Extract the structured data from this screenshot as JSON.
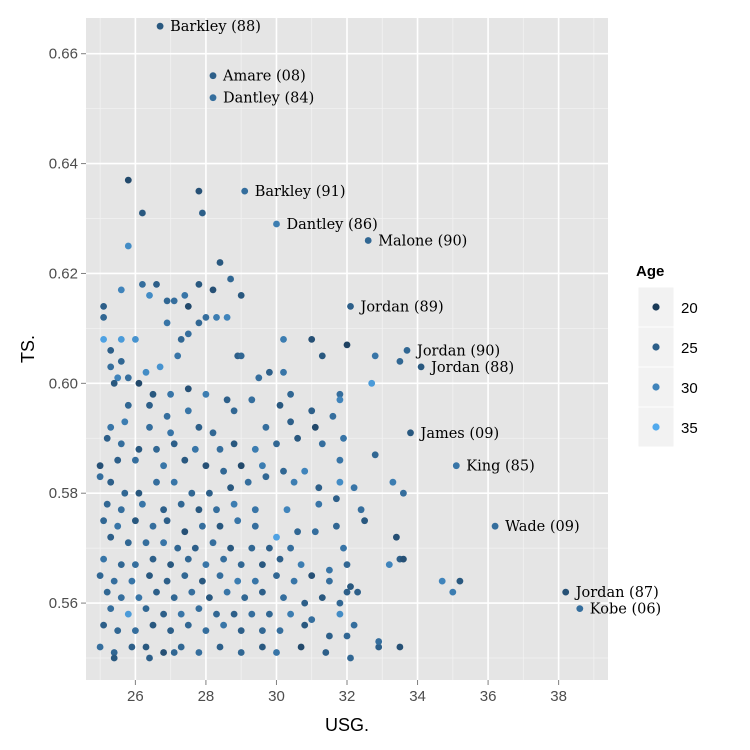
{
  "chart_data": {
    "type": "scatter",
    "title": "",
    "xlabel": "USG.",
    "ylabel": "TS.",
    "xlim": [
      24.6,
      39.4
    ],
    "ylim": [
      0.546,
      0.6665
    ],
    "x_ticks": [
      26,
      28,
      30,
      32,
      34,
      36,
      38
    ],
    "y_ticks": [
      0.56,
      0.58,
      0.6,
      0.62,
      0.64,
      0.66
    ],
    "grid": true,
    "color_scale": {
      "name": "Age",
      "low_value": 18,
      "low_color": "#132B43",
      "high_value": 36,
      "high_color": "#56B1F7"
    },
    "legend": {
      "title": "Age",
      "position": "right",
      "entries": [
        20,
        25,
        30,
        35
      ]
    },
    "annotations": [
      {
        "label": "Barkley (88)",
        "x": 26.7,
        "y": 0.665,
        "age": 24
      },
      {
        "label": "Amare (08)",
        "x": 28.2,
        "y": 0.656,
        "age": 25
      },
      {
        "label": "Dantley (84)",
        "x": 28.2,
        "y": 0.652,
        "age": 27
      },
      {
        "label": "Barkley (91)",
        "x": 29.1,
        "y": 0.635,
        "age": 27
      },
      {
        "label": "Dantley (86)",
        "x": 30.0,
        "y": 0.629,
        "age": 29
      },
      {
        "label": "Malone (90)",
        "x": 32.6,
        "y": 0.626,
        "age": 26
      },
      {
        "label": "Jordan (89)",
        "x": 32.1,
        "y": 0.614,
        "age": 25
      },
      {
        "label": "Jordan (90)",
        "x": 33.7,
        "y": 0.606,
        "age": 26
      },
      {
        "label": "Jordan (88)",
        "x": 34.1,
        "y": 0.603,
        "age": 24
      },
      {
        "label": "James (09)",
        "x": 33.8,
        "y": 0.591,
        "age": 24
      },
      {
        "label": "King (85)",
        "x": 35.1,
        "y": 0.585,
        "age": 28
      },
      {
        "label": "Wade (09)",
        "x": 36.2,
        "y": 0.574,
        "age": 27
      },
      {
        "label": "Jordan (87)",
        "x": 38.2,
        "y": 0.562,
        "age": 23
      },
      {
        "label": "Kobe (06)",
        "x": 38.6,
        "y": 0.559,
        "age": 27
      }
    ],
    "points": [
      [
        26.7,
        0.665,
        24
      ],
      [
        28.2,
        0.656,
        25
      ],
      [
        28.2,
        0.652,
        27
      ],
      [
        29.1,
        0.635,
        27
      ],
      [
        30.0,
        0.629,
        29
      ],
      [
        32.6,
        0.626,
        26
      ],
      [
        32.1,
        0.614,
        25
      ],
      [
        33.7,
        0.606,
        26
      ],
      [
        34.1,
        0.603,
        24
      ],
      [
        33.8,
        0.591,
        24
      ],
      [
        35.1,
        0.585,
        28
      ],
      [
        36.2,
        0.574,
        27
      ],
      [
        38.2,
        0.562,
        23
      ],
      [
        38.6,
        0.559,
        27
      ],
      [
        25.8,
        0.637,
        22
      ],
      [
        27.8,
        0.635,
        23
      ],
      [
        26.2,
        0.631,
        24
      ],
      [
        27.9,
        0.631,
        25
      ],
      [
        25.8,
        0.625,
        31
      ],
      [
        28.4,
        0.622,
        24
      ],
      [
        28.7,
        0.619,
        26
      ],
      [
        26.2,
        0.618,
        27
      ],
      [
        26.6,
        0.618,
        25
      ],
      [
        27.8,
        0.618,
        24
      ],
      [
        28.2,
        0.617,
        23
      ],
      [
        25.6,
        0.617,
        30
      ],
      [
        26.4,
        0.616,
        31
      ],
      [
        26.9,
        0.615,
        26
      ],
      [
        27.1,
        0.615,
        27
      ],
      [
        27.4,
        0.616,
        28
      ],
      [
        27.5,
        0.614,
        22
      ],
      [
        29.0,
        0.616,
        24
      ],
      [
        25.1,
        0.614,
        25
      ],
      [
        28.0,
        0.612,
        27
      ],
      [
        28.3,
        0.612,
        29
      ],
      [
        28.6,
        0.612,
        30
      ],
      [
        26.9,
        0.611,
        28
      ],
      [
        27.8,
        0.611,
        26
      ],
      [
        25.1,
        0.612,
        26
      ],
      [
        25.1,
        0.608,
        34
      ],
      [
        25.6,
        0.608,
        33
      ],
      [
        26.0,
        0.608,
        32
      ],
      [
        27.3,
        0.608,
        26
      ],
      [
        27.5,
        0.609,
        27
      ],
      [
        28.9,
        0.605,
        25
      ],
      [
        29.0,
        0.605,
        26
      ],
      [
        30.2,
        0.608,
        29
      ],
      [
        31.0,
        0.608,
        23
      ],
      [
        32.0,
        0.607,
        21
      ],
      [
        31.3,
        0.605,
        24
      ],
      [
        25.3,
        0.606,
        25
      ],
      [
        25.6,
        0.604,
        26
      ],
      [
        25.8,
        0.601,
        27
      ],
      [
        27.2,
        0.605,
        28
      ],
      [
        26.7,
        0.603,
        32
      ],
      [
        26.3,
        0.602,
        31
      ],
      [
        25.3,
        0.603,
        27
      ],
      [
        25.5,
        0.601,
        30
      ],
      [
        29.5,
        0.601,
        27
      ],
      [
        29.8,
        0.602,
        25
      ],
      [
        30.2,
        0.602,
        28
      ],
      [
        32.8,
        0.605,
        28
      ],
      [
        33.5,
        0.604,
        26
      ],
      [
        25.4,
        0.6,
        24
      ],
      [
        26.1,
        0.6,
        22
      ],
      [
        26.5,
        0.598,
        24
      ],
      [
        27.0,
        0.598,
        28
      ],
      [
        27.5,
        0.599,
        23
      ],
      [
        28.0,
        0.598,
        29
      ],
      [
        28.6,
        0.597,
        25
      ],
      [
        29.3,
        0.597,
        27
      ],
      [
        30.4,
        0.598,
        26
      ],
      [
        31.8,
        0.598,
        27
      ],
      [
        32.7,
        0.6,
        33
      ],
      [
        25.8,
        0.596,
        26
      ],
      [
        26.4,
        0.596,
        25
      ],
      [
        26.9,
        0.594,
        27
      ],
      [
        27.5,
        0.595,
        28
      ],
      [
        28.8,
        0.595,
        26
      ],
      [
        30.1,
        0.596,
        24
      ],
      [
        31.0,
        0.595,
        25
      ],
      [
        31.6,
        0.594,
        27
      ],
      [
        31.8,
        0.597,
        30
      ],
      [
        25.3,
        0.592,
        28
      ],
      [
        25.7,
        0.593,
        29
      ],
      [
        26.4,
        0.592,
        27
      ],
      [
        27.0,
        0.591,
        28
      ],
      [
        27.8,
        0.592,
        25
      ],
      [
        28.2,
        0.591,
        26
      ],
      [
        29.7,
        0.592,
        27
      ],
      [
        30.4,
        0.593,
        25
      ],
      [
        31.1,
        0.592,
        22
      ],
      [
        25.2,
        0.59,
        25
      ],
      [
        25.6,
        0.589,
        27
      ],
      [
        26.1,
        0.588,
        24
      ],
      [
        26.6,
        0.588,
        26
      ],
      [
        27.1,
        0.589,
        25
      ],
      [
        27.7,
        0.588,
        28
      ],
      [
        28.4,
        0.588,
        27
      ],
      [
        28.8,
        0.589,
        24
      ],
      [
        29.4,
        0.588,
        29
      ],
      [
        30.0,
        0.589,
        26
      ],
      [
        30.6,
        0.59,
        24
      ],
      [
        31.3,
        0.589,
        27
      ],
      [
        31.9,
        0.59,
        28
      ],
      [
        32.8,
        0.587,
        26
      ],
      [
        25.0,
        0.585,
        23
      ],
      [
        25.5,
        0.586,
        25
      ],
      [
        26.0,
        0.586,
        27
      ],
      [
        26.8,
        0.585,
        28
      ],
      [
        27.4,
        0.586,
        24
      ],
      [
        28.0,
        0.585,
        23
      ],
      [
        28.5,
        0.584,
        26
      ],
      [
        29.0,
        0.585,
        22
      ],
      [
        29.6,
        0.585,
        29
      ],
      [
        30.2,
        0.584,
        26
      ],
      [
        30.8,
        0.584,
        30
      ],
      [
        31.8,
        0.586,
        28
      ],
      [
        33.3,
        0.582,
        29
      ],
      [
        33.6,
        0.58,
        27
      ],
      [
        25.0,
        0.583,
        27
      ],
      [
        25.3,
        0.582,
        25
      ],
      [
        25.7,
        0.58,
        26
      ],
      [
        26.1,
        0.58,
        24
      ],
      [
        26.6,
        0.582,
        27
      ],
      [
        27.1,
        0.582,
        28
      ],
      [
        27.6,
        0.58,
        26
      ],
      [
        28.1,
        0.58,
        25
      ],
      [
        28.7,
        0.581,
        24
      ],
      [
        29.2,
        0.582,
        27
      ],
      [
        29.7,
        0.583,
        26
      ],
      [
        30.5,
        0.582,
        29
      ],
      [
        31.2,
        0.581,
        25
      ],
      [
        31.8,
        0.582,
        31
      ],
      [
        32.2,
        0.581,
        28
      ],
      [
        25.2,
        0.578,
        26
      ],
      [
        25.6,
        0.577,
        27
      ],
      [
        26.2,
        0.578,
        28
      ],
      [
        26.8,
        0.577,
        25
      ],
      [
        27.3,
        0.578,
        26
      ],
      [
        27.8,
        0.577,
        24
      ],
      [
        28.3,
        0.577,
        27
      ],
      [
        28.8,
        0.578,
        29
      ],
      [
        29.4,
        0.577,
        28
      ],
      [
        30.3,
        0.577,
        30
      ],
      [
        31.2,
        0.578,
        28
      ],
      [
        31.7,
        0.579,
        25
      ],
      [
        32.4,
        0.577,
        27
      ],
      [
        25.1,
        0.575,
        26
      ],
      [
        25.5,
        0.574,
        28
      ],
      [
        26.0,
        0.575,
        24
      ],
      [
        26.5,
        0.574,
        27
      ],
      [
        26.9,
        0.575,
        25
      ],
      [
        27.4,
        0.573,
        23
      ],
      [
        27.9,
        0.574,
        27
      ],
      [
        28.4,
        0.574,
        24
      ],
      [
        28.9,
        0.575,
        28
      ],
      [
        29.4,
        0.574,
        27
      ],
      [
        30.0,
        0.572,
        34
      ],
      [
        30.6,
        0.573,
        26
      ],
      [
        31.1,
        0.573,
        27
      ],
      [
        31.7,
        0.574,
        26
      ],
      [
        32.5,
        0.575,
        24
      ],
      [
        33.4,
        0.572,
        23
      ],
      [
        25.3,
        0.572,
        25
      ],
      [
        25.8,
        0.571,
        26
      ],
      [
        26.3,
        0.571,
        27
      ],
      [
        26.8,
        0.571,
        28
      ],
      [
        27.2,
        0.57,
        26
      ],
      [
        27.7,
        0.57,
        25
      ],
      [
        28.2,
        0.571,
        27
      ],
      [
        28.7,
        0.57,
        24
      ],
      [
        29.3,
        0.57,
        26
      ],
      [
        29.8,
        0.57,
        25
      ],
      [
        30.4,
        0.57,
        27
      ],
      [
        31.9,
        0.57,
        28
      ],
      [
        33.5,
        0.568,
        25
      ],
      [
        33.6,
        0.568,
        23
      ],
      [
        25.1,
        0.568,
        28
      ],
      [
        25.6,
        0.567,
        26
      ],
      [
        26.0,
        0.567,
        27
      ],
      [
        26.5,
        0.568,
        25
      ],
      [
        27.0,
        0.567,
        24
      ],
      [
        27.5,
        0.568,
        26
      ],
      [
        28.0,
        0.567,
        28
      ],
      [
        28.5,
        0.568,
        27
      ],
      [
        29.0,
        0.567,
        26
      ],
      [
        29.6,
        0.567,
        24
      ],
      [
        30.1,
        0.568,
        25
      ],
      [
        30.7,
        0.567,
        29
      ],
      [
        31.5,
        0.566,
        28
      ],
      [
        32.0,
        0.567,
        26
      ],
      [
        33.2,
        0.567,
        30
      ],
      [
        25.0,
        0.565,
        26
      ],
      [
        25.4,
        0.564,
        27
      ],
      [
        25.9,
        0.564,
        28
      ],
      [
        26.4,
        0.565,
        24
      ],
      [
        26.9,
        0.564,
        25
      ],
      [
        27.4,
        0.565,
        26
      ],
      [
        27.9,
        0.564,
        24
      ],
      [
        28.4,
        0.565,
        27
      ],
      [
        28.9,
        0.564,
        29
      ],
      [
        29.4,
        0.564,
        28
      ],
      [
        30.0,
        0.565,
        26
      ],
      [
        30.5,
        0.564,
        28
      ],
      [
        31.0,
        0.565,
        23
      ],
      [
        31.5,
        0.564,
        27
      ],
      [
        32.1,
        0.563,
        24
      ],
      [
        32.3,
        0.562,
        25
      ],
      [
        34.7,
        0.564,
        30
      ],
      [
        35.2,
        0.564,
        24
      ],
      [
        35.0,
        0.562,
        29
      ],
      [
        25.2,
        0.562,
        26
      ],
      [
        25.6,
        0.561,
        27
      ],
      [
        26.1,
        0.561,
        28
      ],
      [
        26.6,
        0.562,
        25
      ],
      [
        27.1,
        0.561,
        26
      ],
      [
        27.6,
        0.562,
        27
      ],
      [
        28.1,
        0.561,
        24
      ],
      [
        28.6,
        0.562,
        28
      ],
      [
        29.1,
        0.561,
        26
      ],
      [
        29.6,
        0.562,
        25
      ],
      [
        30.2,
        0.561,
        27
      ],
      [
        30.8,
        0.56,
        25
      ],
      [
        31.3,
        0.561,
        24
      ],
      [
        31.8,
        0.56,
        26
      ],
      [
        32.0,
        0.562,
        25
      ],
      [
        25.3,
        0.559,
        27
      ],
      [
        25.8,
        0.558,
        33
      ],
      [
        26.3,
        0.559,
        26
      ],
      [
        26.8,
        0.558,
        25
      ],
      [
        27.3,
        0.558,
        28
      ],
      [
        27.8,
        0.559,
        27
      ],
      [
        28.3,
        0.558,
        26
      ],
      [
        28.8,
        0.558,
        25
      ],
      [
        29.3,
        0.558,
        27
      ],
      [
        29.8,
        0.558,
        26
      ],
      [
        30.4,
        0.558,
        29
      ],
      [
        31.0,
        0.557,
        27
      ],
      [
        31.8,
        0.558,
        31
      ],
      [
        32.2,
        0.556,
        27
      ],
      [
        25.1,
        0.556,
        25
      ],
      [
        25.5,
        0.555,
        26
      ],
      [
        26.0,
        0.555,
        27
      ],
      [
        26.5,
        0.556,
        24
      ],
      [
        27.0,
        0.555,
        25
      ],
      [
        27.5,
        0.556,
        26
      ],
      [
        28.0,
        0.555,
        27
      ],
      [
        28.5,
        0.556,
        28
      ],
      [
        29.0,
        0.555,
        25
      ],
      [
        29.6,
        0.555,
        26
      ],
      [
        30.1,
        0.555,
        27
      ],
      [
        30.8,
        0.556,
        24
      ],
      [
        31.5,
        0.554,
        25
      ],
      [
        32.0,
        0.554,
        26
      ],
      [
        25.0,
        0.552,
        27
      ],
      [
        25.4,
        0.551,
        26
      ],
      [
        25.9,
        0.552,
        25
      ],
      [
        26.3,
        0.552,
        24
      ],
      [
        26.8,
        0.551,
        23
      ],
      [
        27.3,
        0.552,
        26
      ],
      [
        27.8,
        0.551,
        27
      ],
      [
        28.4,
        0.552,
        25
      ],
      [
        29.0,
        0.551,
        26
      ],
      [
        29.6,
        0.552,
        24
      ],
      [
        30.0,
        0.551,
        28
      ],
      [
        30.7,
        0.552,
        22
      ],
      [
        31.4,
        0.551,
        25
      ],
      [
        32.1,
        0.55,
        26
      ],
      [
        32.9,
        0.552,
        25
      ],
      [
        33.5,
        0.552,
        23
      ],
      [
        25.4,
        0.55,
        24
      ],
      [
        26.4,
        0.55,
        25
      ],
      [
        27.1,
        0.551,
        26
      ],
      [
        32.9,
        0.553,
        27
      ]
    ]
  }
}
